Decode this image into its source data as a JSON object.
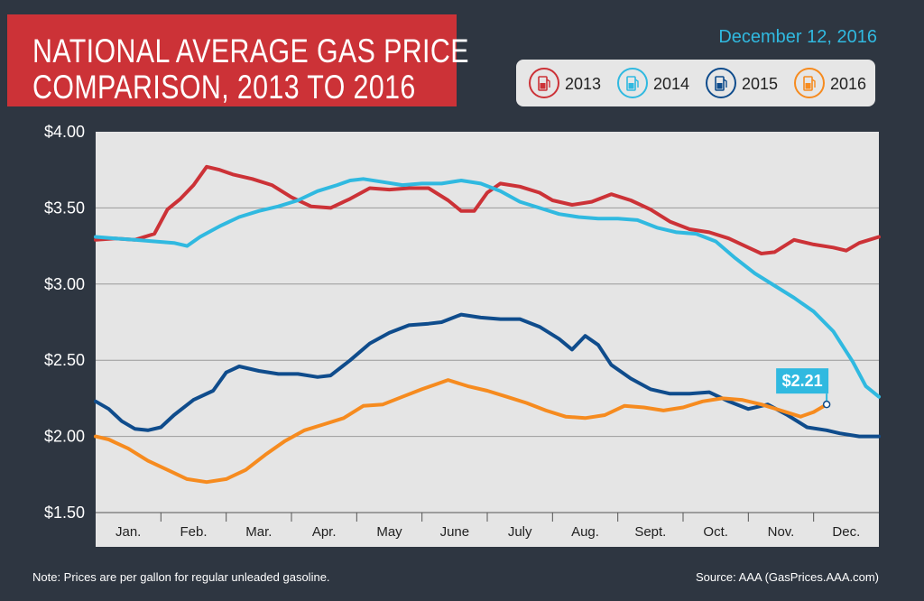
{
  "header": {
    "title_line1": "NATIONAL AVERAGE GAS PRICE",
    "title_line2": "COMPARISON, 2013 TO 2016",
    "date": "December 12, 2016"
  },
  "footer": {
    "note": "Note: Prices are per gallon for regular unleaded gasoline.",
    "source": "Source: AAA (GasPrices.AAA.com)"
  },
  "colors": {
    "background": "#2e3641",
    "title_bg": "#cc3237",
    "plot_bg": "#e5e5e5",
    "2013": "#cc3237",
    "2014": "#30b9e0",
    "2015": "#0f4c8c",
    "2016": "#f68b1f"
  },
  "chart_data": {
    "type": "line",
    "title": "NATIONAL AVERAGE GAS PRICE COMPARISON, 2013 TO 2016",
    "xlabel": "",
    "ylabel": "",
    "ylim": [
      1.5,
      4.0
    ],
    "yticks": [
      "$4.00",
      "$3.50",
      "$3.00",
      "$2.50",
      "$2.00",
      "$1.50"
    ],
    "categories": [
      "Jan.",
      "Feb.",
      "Mar.",
      "Apr.",
      "May",
      "June",
      "July",
      "Aug.",
      "Sept.",
      "Oct.",
      "Nov.",
      "Dec."
    ],
    "x_unit": "month (0 = start of January, 12 = end of December)",
    "legend_position": "top-right",
    "grid": "horizontal",
    "current_value": {
      "series": "2016",
      "label": "$2.21",
      "x": 11.2,
      "y": 2.21
    },
    "series": [
      {
        "name": "2013",
        "points": [
          [
            0,
            3.29
          ],
          [
            0.3,
            3.3
          ],
          [
            0.6,
            3.29
          ],
          [
            0.9,
            3.33
          ],
          [
            1.1,
            3.49
          ],
          [
            1.3,
            3.56
          ],
          [
            1.5,
            3.65
          ],
          [
            1.7,
            3.77
          ],
          [
            1.9,
            3.75
          ],
          [
            2.1,
            3.72
          ],
          [
            2.4,
            3.69
          ],
          [
            2.7,
            3.65
          ],
          [
            3.0,
            3.57
          ],
          [
            3.3,
            3.51
          ],
          [
            3.6,
            3.5
          ],
          [
            3.9,
            3.56
          ],
          [
            4.2,
            3.63
          ],
          [
            4.5,
            3.62
          ],
          [
            4.8,
            3.63
          ],
          [
            5.1,
            3.63
          ],
          [
            5.4,
            3.55
          ],
          [
            5.6,
            3.48
          ],
          [
            5.8,
            3.48
          ],
          [
            6.0,
            3.6
          ],
          [
            6.2,
            3.66
          ],
          [
            6.5,
            3.64
          ],
          [
            6.8,
            3.6
          ],
          [
            7.0,
            3.55
          ],
          [
            7.3,
            3.52
          ],
          [
            7.6,
            3.54
          ],
          [
            7.9,
            3.59
          ],
          [
            8.2,
            3.55
          ],
          [
            8.5,
            3.49
          ],
          [
            8.8,
            3.41
          ],
          [
            9.1,
            3.36
          ],
          [
            9.4,
            3.34
          ],
          [
            9.7,
            3.3
          ],
          [
            10.0,
            3.24
          ],
          [
            10.2,
            3.2
          ],
          [
            10.4,
            3.21
          ],
          [
            10.7,
            3.29
          ],
          [
            11.0,
            3.26
          ],
          [
            11.3,
            3.24
          ],
          [
            11.5,
            3.22
          ],
          [
            11.7,
            3.27
          ],
          [
            12.0,
            3.31
          ]
        ]
      },
      {
        "name": "2014",
        "points": [
          [
            0,
            3.31
          ],
          [
            0.3,
            3.3
          ],
          [
            0.6,
            3.29
          ],
          [
            0.9,
            3.28
          ],
          [
            1.2,
            3.27
          ],
          [
            1.4,
            3.25
          ],
          [
            1.6,
            3.31
          ],
          [
            1.9,
            3.38
          ],
          [
            2.2,
            3.44
          ],
          [
            2.5,
            3.48
          ],
          [
            2.8,
            3.51
          ],
          [
            3.1,
            3.55
          ],
          [
            3.4,
            3.61
          ],
          [
            3.7,
            3.65
          ],
          [
            3.9,
            3.68
          ],
          [
            4.1,
            3.69
          ],
          [
            4.4,
            3.67
          ],
          [
            4.7,
            3.65
          ],
          [
            5.0,
            3.66
          ],
          [
            5.3,
            3.66
          ],
          [
            5.6,
            3.68
          ],
          [
            5.9,
            3.66
          ],
          [
            6.2,
            3.61
          ],
          [
            6.5,
            3.54
          ],
          [
            6.8,
            3.5
          ],
          [
            7.1,
            3.46
          ],
          [
            7.4,
            3.44
          ],
          [
            7.7,
            3.43
          ],
          [
            8.0,
            3.43
          ],
          [
            8.3,
            3.42
          ],
          [
            8.6,
            3.37
          ],
          [
            8.9,
            3.34
          ],
          [
            9.2,
            3.33
          ],
          [
            9.5,
            3.28
          ],
          [
            9.8,
            3.17
          ],
          [
            10.1,
            3.07
          ],
          [
            10.4,
            2.99
          ],
          [
            10.7,
            2.91
          ],
          [
            11.0,
            2.82
          ],
          [
            11.3,
            2.69
          ],
          [
            11.6,
            2.49
          ],
          [
            11.8,
            2.33
          ],
          [
            12.0,
            2.26
          ]
        ]
      },
      {
        "name": "2015",
        "points": [
          [
            0,
            2.23
          ],
          [
            0.2,
            2.18
          ],
          [
            0.4,
            2.1
          ],
          [
            0.6,
            2.05
          ],
          [
            0.8,
            2.04
          ],
          [
            1.0,
            2.06
          ],
          [
            1.2,
            2.14
          ],
          [
            1.5,
            2.24
          ],
          [
            1.8,
            2.3
          ],
          [
            2.0,
            2.42
          ],
          [
            2.2,
            2.46
          ],
          [
            2.5,
            2.43
          ],
          [
            2.8,
            2.41
          ],
          [
            3.1,
            2.41
          ],
          [
            3.4,
            2.39
          ],
          [
            3.6,
            2.4
          ],
          [
            3.9,
            2.5
          ],
          [
            4.2,
            2.61
          ],
          [
            4.5,
            2.68
          ],
          [
            4.8,
            2.73
          ],
          [
            5.1,
            2.74
          ],
          [
            5.3,
            2.75
          ],
          [
            5.6,
            2.8
          ],
          [
            5.9,
            2.78
          ],
          [
            6.2,
            2.77
          ],
          [
            6.5,
            2.77
          ],
          [
            6.8,
            2.72
          ],
          [
            7.1,
            2.64
          ],
          [
            7.3,
            2.57
          ],
          [
            7.5,
            2.66
          ],
          [
            7.7,
            2.6
          ],
          [
            7.9,
            2.47
          ],
          [
            8.2,
            2.38
          ],
          [
            8.5,
            2.31
          ],
          [
            8.8,
            2.28
          ],
          [
            9.1,
            2.28
          ],
          [
            9.4,
            2.29
          ],
          [
            9.7,
            2.23
          ],
          [
            10.0,
            2.18
          ],
          [
            10.3,
            2.21
          ],
          [
            10.6,
            2.14
          ],
          [
            10.9,
            2.06
          ],
          [
            11.2,
            2.04
          ],
          [
            11.4,
            2.02
          ],
          [
            11.7,
            2.0
          ],
          [
            12.0,
            2.0
          ]
        ]
      },
      {
        "name": "2016",
        "points": [
          [
            0,
            2.0
          ],
          [
            0.2,
            1.98
          ],
          [
            0.5,
            1.92
          ],
          [
            0.8,
            1.84
          ],
          [
            1.1,
            1.78
          ],
          [
            1.4,
            1.72
          ],
          [
            1.7,
            1.7
          ],
          [
            2.0,
            1.72
          ],
          [
            2.3,
            1.78
          ],
          [
            2.6,
            1.88
          ],
          [
            2.9,
            1.97
          ],
          [
            3.2,
            2.04
          ],
          [
            3.5,
            2.08
          ],
          [
            3.8,
            2.12
          ],
          [
            4.1,
            2.2
          ],
          [
            4.4,
            2.21
          ],
          [
            4.7,
            2.26
          ],
          [
            5.0,
            2.31
          ],
          [
            5.2,
            2.34
          ],
          [
            5.4,
            2.37
          ],
          [
            5.7,
            2.33
          ],
          [
            6.0,
            2.3
          ],
          [
            6.3,
            2.26
          ],
          [
            6.6,
            2.22
          ],
          [
            6.9,
            2.17
          ],
          [
            7.2,
            2.13
          ],
          [
            7.5,
            2.12
          ],
          [
            7.8,
            2.14
          ],
          [
            8.1,
            2.2
          ],
          [
            8.4,
            2.19
          ],
          [
            8.7,
            2.17
          ],
          [
            9.0,
            2.19
          ],
          [
            9.3,
            2.23
          ],
          [
            9.6,
            2.25
          ],
          [
            9.9,
            2.24
          ],
          [
            10.2,
            2.21
          ],
          [
            10.5,
            2.17
          ],
          [
            10.8,
            2.13
          ],
          [
            11.0,
            2.16
          ],
          [
            11.2,
            2.21
          ]
        ]
      }
    ]
  }
}
